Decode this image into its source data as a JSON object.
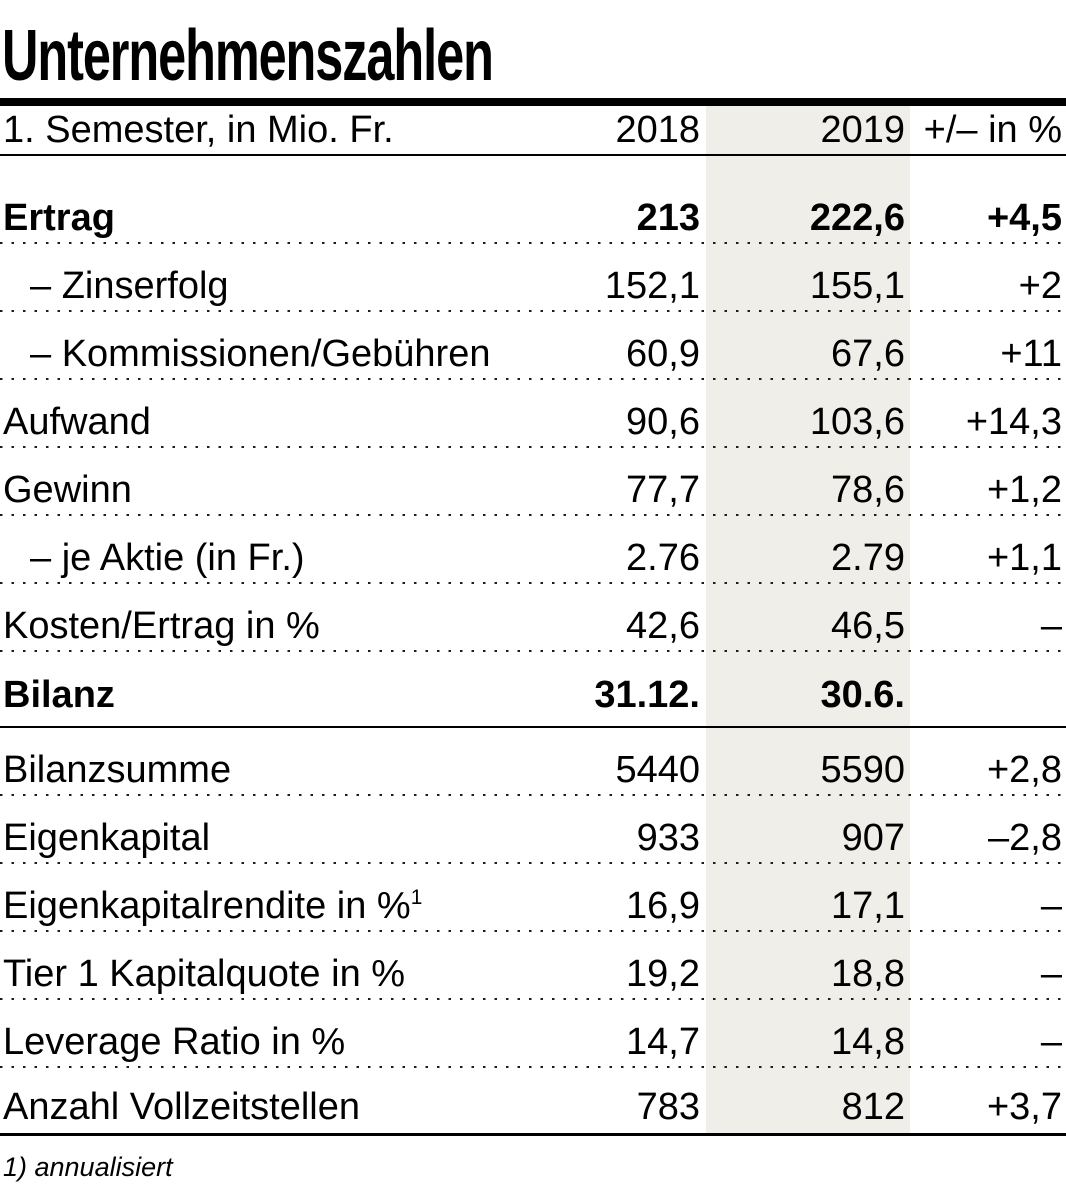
{
  "title": "Unternehmenszahlen",
  "footnote": "1) annualisiert",
  "colors": {
    "highlight_column": "#efeee8",
    "text": "#000000",
    "rule": "#000000"
  },
  "table": {
    "header": {
      "label": "1. Semester, in Mio. Fr.",
      "col2018": "2018",
      "col2019": "2019",
      "colChange": "+/– in %"
    },
    "rows": [
      {
        "label": "Ertrag",
        "v2018": "213",
        "v2019": "222,6",
        "change": "+4,5",
        "bold": true,
        "indent": false,
        "sep": "dotted",
        "first": true
      },
      {
        "label": "– Zinserfolg",
        "v2018": "152,1",
        "v2019": "155,1",
        "change": "+2",
        "bold": false,
        "indent": true,
        "sep": "dotted"
      },
      {
        "label": "– Kommissionen/Gebühren",
        "v2018": "60,9",
        "v2019": "67,6",
        "change": "+11",
        "bold": false,
        "indent": true,
        "sep": "dotted"
      },
      {
        "label": "Aufwand",
        "v2018": "90,6",
        "v2019": "103,6",
        "change": "+14,3",
        "bold": false,
        "indent": false,
        "sep": "dotted"
      },
      {
        "label": "Gewinn",
        "v2018": "77,7",
        "v2019": "78,6",
        "change": "+1,2",
        "bold": false,
        "indent": false,
        "sep": "dotted"
      },
      {
        "label": "– je Aktie (in Fr.)",
        "v2018": "2.76",
        "v2019": "2.79",
        "change": "+1,1",
        "bold": false,
        "indent": true,
        "sep": "dotted"
      },
      {
        "label": "Kosten/Ertrag in %",
        "v2018": "42,6",
        "v2019": "46,5",
        "change": "–",
        "bold": false,
        "indent": false,
        "sep": "dotted"
      },
      {
        "label": "Bilanz",
        "v2018": "31.12.",
        "v2019": "30.6.",
        "change": "",
        "bold": true,
        "indent": false,
        "sep": "solid",
        "section": true
      },
      {
        "label": "Bilanzsumme",
        "v2018": "5440",
        "v2019": "5590",
        "change": "+2,8",
        "bold": false,
        "indent": false,
        "sep": "dotted"
      },
      {
        "label": "Eigenkapital",
        "v2018": "933",
        "v2019": "907",
        "change": "–2,8",
        "bold": false,
        "indent": false,
        "sep": "dotted"
      },
      {
        "label": "Eigenkapitalrendite in %",
        "label_sup": "1",
        "v2018": "16,9",
        "v2019": "17,1",
        "change": "–",
        "bold": false,
        "indent": false,
        "sep": "dotted"
      },
      {
        "label": "Tier 1 Kapitalquote in %",
        "v2018": "19,2",
        "v2019": "18,8",
        "change": "–",
        "bold": false,
        "indent": false,
        "sep": "dotted"
      },
      {
        "label": "Leverage Ratio in %",
        "v2018": "14,7",
        "v2019": "14,8",
        "change": "–",
        "bold": false,
        "indent": false,
        "sep": "dotted"
      },
      {
        "label": "Anzahl Vollzeitstellen",
        "v2018": "783",
        "v2019": "812",
        "change": "+3,7",
        "bold": false,
        "indent": false,
        "sep": "solid-thick",
        "last": true
      }
    ]
  }
}
